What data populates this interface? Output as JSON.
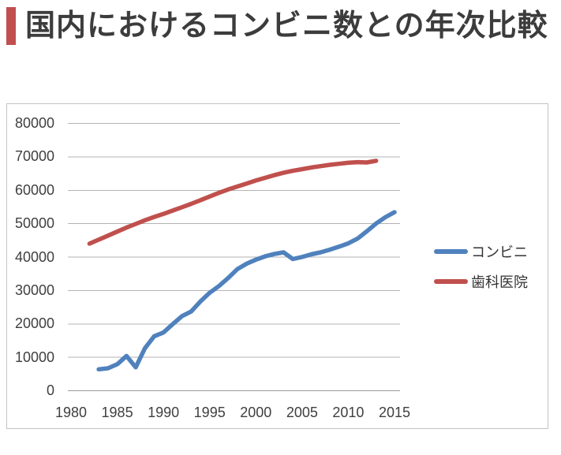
{
  "page": {
    "title": "国内におけるコンビニ数との年次比較",
    "accent_color": "#C14F4F"
  },
  "chart_data": {
    "type": "line",
    "title": "国内におけるコンビニ数との年次比較",
    "xlabel": "",
    "ylabel": "",
    "grid": "horizontal",
    "legend_position": "right-middle",
    "x_axis": {
      "min": 1980,
      "max": 2015,
      "ticks": [
        1980,
        1985,
        1990,
        1995,
        2000,
        2005,
        2010,
        2015
      ]
    },
    "y_axis": {
      "min": 0,
      "max": 80000,
      "ticks": [
        0,
        10000,
        20000,
        30000,
        40000,
        50000,
        60000,
        70000,
        80000
      ]
    },
    "series": [
      {
        "name": "コンビニ",
        "color": "#4F81BD",
        "years": [
          1983,
          1984,
          1985,
          1986,
          1987,
          1988,
          1989,
          1990,
          1991,
          1992,
          1993,
          1994,
          1995,
          1996,
          1997,
          1998,
          1999,
          2000,
          2001,
          2002,
          2003,
          2004,
          2005,
          2006,
          2007,
          2008,
          2009,
          2010,
          2011,
          2012,
          2013,
          2014,
          2015
        ],
        "values": [
          6300,
          6600,
          7800,
          10300,
          6900,
          12600,
          16200,
          17300,
          19800,
          22200,
          23600,
          26600,
          29200,
          31200,
          33600,
          36300,
          37900,
          39100,
          40100,
          40800,
          41300,
          39300,
          39900,
          40700,
          41300,
          42100,
          43000,
          44000,
          45400,
          47600,
          49900,
          51800,
          53300
        ]
      },
      {
        "name": "歯科医院",
        "color": "#C0504D",
        "years": [
          1982,
          1983,
          1984,
          1985,
          1986,
          1987,
          1988,
          1989,
          1990,
          1991,
          1992,
          1993,
          1994,
          1995,
          1996,
          1997,
          1998,
          1999,
          2000,
          2001,
          2002,
          2003,
          2004,
          2005,
          2006,
          2007,
          2008,
          2009,
          2010,
          2011,
          2012,
          2013
        ],
        "values": [
          43900,
          45100,
          46300,
          47500,
          48700,
          49800,
          50900,
          51900,
          52800,
          53800,
          54800,
          55800,
          56900,
          58000,
          59100,
          60100,
          61000,
          61900,
          62800,
          63600,
          64400,
          65100,
          65700,
          66200,
          66700,
          67100,
          67500,
          67800,
          68100,
          68300,
          68200,
          68700
        ]
      }
    ]
  }
}
